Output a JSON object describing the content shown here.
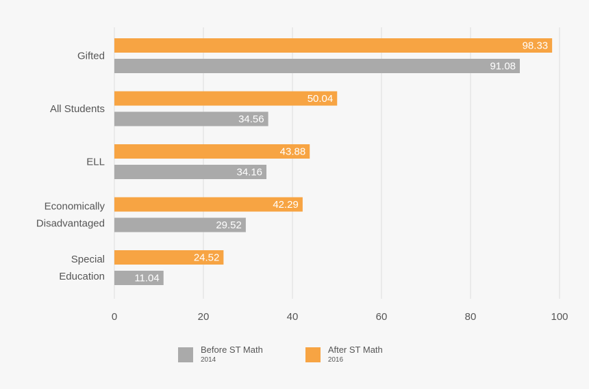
{
  "colors": {
    "after": "#f7a443",
    "before": "#aaaaaa",
    "grid": "#dcdcdc",
    "text": "#555555",
    "bar_label": "#ffffff"
  },
  "chart_data": {
    "type": "bar",
    "orientation": "horizontal",
    "title": "",
    "xlabel": "",
    "ylabel": "",
    "xlim": [
      0,
      100
    ],
    "xticks": [
      0,
      20,
      40,
      60,
      80,
      100
    ],
    "grid": true,
    "categories": [
      [
        "Gifted"
      ],
      [
        "All Students"
      ],
      [
        "ELL"
      ],
      [
        "Economically",
        "Disadvantaged"
      ],
      [
        "Special",
        "Education"
      ]
    ],
    "series": [
      {
        "name": "After ST Math",
        "sub": "2016",
        "values": [
          98.33,
          50.04,
          43.88,
          42.29,
          24.52
        ]
      },
      {
        "name": "Before ST Math",
        "sub": "2014",
        "values": [
          91.08,
          34.56,
          34.16,
          29.52,
          11.04
        ]
      }
    ],
    "value_labels": [
      [
        "98.33",
        "50.04",
        "43.88",
        "42.29",
        "24.52"
      ],
      [
        "91.08",
        "34.56",
        "34.16",
        "29.52",
        "11.04"
      ]
    ],
    "legend": [
      {
        "name": "Before ST Math",
        "sub": "2014"
      },
      {
        "name": "After ST Math",
        "sub": "2016"
      }
    ],
    "legend_position": "bottom-center"
  }
}
